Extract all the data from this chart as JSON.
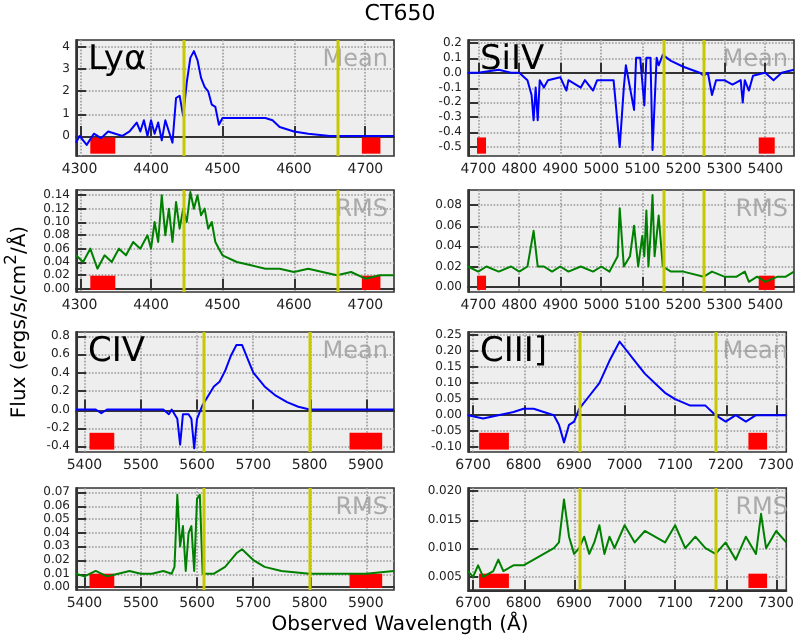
{
  "chart_data": [
    {
      "type": "line",
      "title": "CT650",
      "xlabel": "Observed Wavelength (Å)",
      "ylabel": "Flux (ergs/s/cm$^{2}$/Å)",
      "annotations": [
        "Lyα",
        "Mean"
      ],
      "color": "#0000ff",
      "grid": true,
      "marker": "none",
      "x": [
        4295,
        4300,
        4310,
        4320,
        4330,
        4340,
        4350,
        4360,
        4370,
        4380,
        4385,
        4390,
        4395,
        4400,
        4405,
        4410,
        4415,
        4420,
        4425,
        4430,
        4435,
        4440,
        4445,
        4450,
        4455,
        4460,
        4465,
        4470,
        4475,
        4480,
        4485,
        4490,
        4495,
        4500,
        4520,
        4540,
        4560,
        4570,
        4580,
        4590,
        4600,
        4620,
        4650,
        4700,
        4740
      ],
      "values": [
        -0.3,
        0.0,
        -0.4,
        0.1,
        -0.1,
        0.2,
        0.1,
        0.0,
        0.2,
        0.6,
        0.2,
        0.7,
        0.0,
        0.7,
        0.1,
        0.6,
        -0.2,
        0.7,
        0.2,
        -0.3,
        1.7,
        1.8,
        0.9,
        2.4,
        3.5,
        3.8,
        3.4,
        2.6,
        2.2,
        2.0,
        1.4,
        1.3,
        0.5,
        0.8,
        0.8,
        0.8,
        0.8,
        0.7,
        0.4,
        0.3,
        0.2,
        0.1,
        0.0,
        0.0,
        0.0
      ],
      "xlim": [
        4295,
        4740
      ],
      "xticks": [
        4300,
        4400,
        4500,
        4600,
        4700
      ],
      "ylim": [
        -0.9,
        4.3
      ],
      "yticks": [
        0,
        1,
        2,
        3,
        4
      ],
      "ref_lines": [
        {
          "axis": "x",
          "value": 4445,
          "color": "#c8c800"
        },
        {
          "axis": "x",
          "value": 4660,
          "color": "#c8c800"
        }
      ],
      "bands": [
        {
          "axis": "x",
          "from": 4315,
          "to": 4350,
          "color": "#ff0000"
        },
        {
          "axis": "x",
          "from": 4695,
          "to": 4721,
          "color": "#ff0000"
        }
      ]
    },
    {
      "type": "line",
      "annotations": [
        "RMS"
      ],
      "color": "#008000",
      "grid": true,
      "marker": "none",
      "x": [
        4295,
        4305,
        4315,
        4325,
        4335,
        4345,
        4355,
        4365,
        4375,
        4385,
        4395,
        4400,
        4405,
        4410,
        4415,
        4420,
        4425,
        4430,
        4435,
        4440,
        4445,
        4450,
        4455,
        4460,
        4465,
        4470,
        4475,
        4480,
        4485,
        4490,
        4495,
        4500,
        4520,
        4540,
        4560,
        4580,
        4600,
        4620,
        4640,
        4660,
        4680,
        4700,
        4720,
        4740
      ],
      "values": [
        0.05,
        0.04,
        0.06,
        0.03,
        0.05,
        0.04,
        0.06,
        0.05,
        0.07,
        0.06,
        0.08,
        0.06,
        0.1,
        0.07,
        0.14,
        0.08,
        0.12,
        0.07,
        0.13,
        0.09,
        0.12,
        0.1,
        0.145,
        0.12,
        0.14,
        0.11,
        0.12,
        0.09,
        0.1,
        0.07,
        0.06,
        0.05,
        0.04,
        0.035,
        0.03,
        0.03,
        0.025,
        0.03,
        0.025,
        0.02,
        0.025,
        0.015,
        0.02,
        0.02
      ],
      "xlim": [
        4295,
        4740
      ],
      "xticks": [
        4300,
        4400,
        4500,
        4600,
        4700
      ],
      "ylim": [
        -0.005,
        0.148
      ],
      "yticks": [
        {
          "value": 0,
          "label": "0.00"
        },
        0.02,
        0.04,
        0.06,
        0.08,
        {
          "value": 0.1,
          "label": "0.10"
        },
        0.12,
        0.14
      ],
      "ref_lines": [
        {
          "axis": "x",
          "value": 4445,
          "color": "#c8c800"
        },
        {
          "axis": "x",
          "value": 4660,
          "color": "#c8c800"
        }
      ],
      "bands": [
        {
          "axis": "x",
          "from": 4315,
          "to": 4350,
          "color": "#ff0000"
        },
        {
          "axis": "x",
          "from": 4695,
          "to": 4721,
          "color": "#ff0000"
        }
      ]
    },
    {
      "type": "line",
      "annotations": [
        "SiIV",
        "Mean"
      ],
      "color": "#0000ff",
      "grid": true,
      "marker": "none",
      "x": [
        4675,
        4700,
        4750,
        4780,
        4800,
        4820,
        4830,
        4835,
        4840,
        4845,
        4850,
        4860,
        4870,
        4900,
        4915,
        4920,
        4950,
        4960,
        4980,
        4990,
        5030,
        5045,
        5055,
        5060,
        5070,
        5080,
        5085,
        5095,
        5105,
        5110,
        5120,
        5125,
        5135,
        5140,
        5150,
        5170,
        5200,
        5240,
        5250,
        5260,
        5270,
        5280,
        5300,
        5320,
        5340,
        5345,
        5350,
        5360,
        5370,
        5400,
        5420,
        5440,
        5470
      ],
      "values": [
        0.0,
        0.0,
        0.02,
        0.0,
        0.0,
        -0.05,
        -0.15,
        -0.32,
        -0.1,
        -0.32,
        -0.05,
        -0.1,
        -0.05,
        -0.03,
        -0.12,
        -0.05,
        -0.1,
        -0.05,
        -0.12,
        -0.05,
        -0.05,
        -0.5,
        -0.1,
        0.05,
        -0.1,
        -0.25,
        0.1,
        0.1,
        -0.22,
        0.1,
        0.1,
        -0.52,
        0.1,
        0.05,
        0.12,
        0.08,
        0.04,
        0.0,
        -0.02,
        0.0,
        -0.15,
        -0.05,
        -0.05,
        -0.08,
        -0.05,
        -0.2,
        -0.05,
        -0.12,
        -0.02,
        0.0,
        -0.05,
        0.0,
        0.02
      ],
      "xlim": [
        4675,
        5470
      ],
      "xticks": [
        4700,
        4800,
        4900,
        5000,
        5100,
        5200,
        5300,
        5400
      ],
      "ylim": [
        -0.56,
        0.22
      ],
      "yticks": [
        -0.5,
        -0.4,
        -0.3,
        -0.2,
        -0.1,
        {
          "value": 0,
          "label": "0.0"
        },
        0.1,
        0.2
      ],
      "ref_lines": [
        {
          "axis": "x",
          "value": 5150,
          "color": "#c8c800"
        },
        {
          "axis": "x",
          "value": 5250,
          "color": "#c8c800"
        }
      ],
      "bands": [
        {
          "axis": "x",
          "from": 4697,
          "to": 4719,
          "color": "#ff0000"
        },
        {
          "axis": "x",
          "from": 5384,
          "to": 5423,
          "color": "#ff0000"
        }
      ]
    },
    {
      "type": "line",
      "annotations": [
        "RMS"
      ],
      "color": "#008000",
      "grid": true,
      "marker": "none",
      "x": [
        4675,
        4700,
        4720,
        4750,
        4780,
        4800,
        4820,
        4835,
        4845,
        4860,
        4880,
        4900,
        4920,
        4950,
        4980,
        5000,
        5020,
        5040,
        5045,
        5055,
        5070,
        5080,
        5090,
        5100,
        5105,
        5110,
        5115,
        5120,
        5125,
        5130,
        5140,
        5150,
        5170,
        5200,
        5250,
        5270,
        5300,
        5330,
        5350,
        5360,
        5380,
        5400,
        5430,
        5450,
        5470
      ],
      "values": [
        0.02,
        0.015,
        0.02,
        0.015,
        0.02,
        0.015,
        0.02,
        0.055,
        0.02,
        0.02,
        0.015,
        0.02,
        0.015,
        0.02,
        0.015,
        0.02,
        0.015,
        0.03,
        0.077,
        0.02,
        0.03,
        0.06,
        0.02,
        0.05,
        0.03,
        0.075,
        0.02,
        0.05,
        0.09,
        0.03,
        0.07,
        0.02,
        0.015,
        0.015,
        0.01,
        0.015,
        0.01,
        0.01,
        0.015,
        0.005,
        0.01,
        0.005,
        0.01,
        0.01,
        0.015
      ],
      "xlim": [
        4675,
        5470
      ],
      "xticks": [
        4700,
        4800,
        4900,
        5000,
        5100,
        5200,
        5300,
        5400
      ],
      "ylim": [
        -0.005,
        0.095
      ],
      "yticks": [
        {
          "value": 0,
          "label": "0.00"
        },
        0.02,
        0.04,
        0.06,
        0.08
      ],
      "ref_lines": [
        {
          "axis": "x",
          "value": 5150,
          "color": "#c8c800"
        },
        {
          "axis": "x",
          "value": 5250,
          "color": "#c8c800"
        }
      ],
      "bands": [
        {
          "axis": "x",
          "from": 4697,
          "to": 4719,
          "color": "#ff0000"
        },
        {
          "axis": "x",
          "from": 5384,
          "to": 5423,
          "color": "#ff0000"
        }
      ]
    },
    {
      "type": "line",
      "annotations": [
        "CIV",
        "Mean"
      ],
      "color": "#0000ff",
      "grid": true,
      "marker": "none",
      "x": [
        5385,
        5420,
        5430,
        5440,
        5500,
        5540,
        5550,
        5555,
        5565,
        5570,
        5575,
        5585,
        5590,
        5595,
        5600,
        5610,
        5620,
        5630,
        5640,
        5650,
        5660,
        5670,
        5680,
        5690,
        5700,
        5720,
        5740,
        5760,
        5780,
        5800,
        5850,
        5950
      ],
      "values": [
        0.0,
        0.0,
        -0.04,
        0.0,
        0.0,
        0.0,
        -0.05,
        0.0,
        -0.1,
        -0.38,
        -0.05,
        -0.05,
        -0.1,
        -0.42,
        -0.1,
        0.05,
        0.15,
        0.25,
        0.3,
        0.42,
        0.58,
        0.7,
        0.7,
        0.55,
        0.4,
        0.25,
        0.15,
        0.08,
        0.03,
        0.0,
        0.0,
        0.0
      ],
      "xlim": [
        5385,
        5950
      ],
      "xticks": [
        5400,
        5500,
        5600,
        5700,
        5800,
        5900
      ],
      "ylim": [
        -0.46,
        0.84
      ],
      "yticks": [
        -0.4,
        -0.2,
        {
          "value": 0,
          "label": "0.0"
        },
        0.2,
        0.4,
        0.6,
        0.8
      ],
      "ref_lines": [
        {
          "axis": "x",
          "value": 5610,
          "color": "#c8c800"
        },
        {
          "axis": "x",
          "value": 5800,
          "color": "#c8c800"
        }
      ],
      "bands": [
        {
          "axis": "x",
          "from": 5409,
          "to": 5453,
          "color": "#ff0000"
        },
        {
          "axis": "x",
          "from": 5871,
          "to": 5929,
          "color": "#ff0000"
        }
      ]
    },
    {
      "type": "line",
      "annotations": [
        "CIII]",
        "Mean"
      ],
      "color": "#0000ff",
      "grid": true,
      "marker": "none",
      "x": [
        6690,
        6720,
        6750,
        6780,
        6800,
        6820,
        6840,
        6860,
        6870,
        6880,
        6890,
        6900,
        6910,
        6930,
        6950,
        6970,
        6990,
        7000,
        7020,
        7040,
        7060,
        7080,
        7100,
        7130,
        7160,
        7180,
        7200,
        7220,
        7240,
        7260,
        7300,
        7320
      ],
      "values": [
        0.0,
        -0.01,
        0.0,
        0.01,
        0.02,
        0.02,
        0.01,
        0.0,
        -0.03,
        -0.085,
        -0.03,
        -0.02,
        0.02,
        0.06,
        0.1,
        0.17,
        0.23,
        0.21,
        0.17,
        0.13,
        0.1,
        0.07,
        0.05,
        0.03,
        0.03,
        0.0,
        -0.02,
        0.0,
        -0.02,
        0.0,
        0.0,
        0.0
      ],
      "xlim": [
        6690,
        7320
      ],
      "xticks": [
        6700,
        6800,
        6900,
        7000,
        7100,
        7200,
        7300
      ],
      "ylim": [
        -0.115,
        0.26
      ],
      "yticks": [
        {
          "value": -0.1,
          "label": "-0.10"
        },
        -0.05,
        {
          "value": 0,
          "label": "0.00"
        },
        0.05,
        {
          "value": 0.1,
          "label": "0.10"
        },
        0.15,
        {
          "value": 0.2,
          "label": "0.20"
        },
        0.25
      ],
      "ref_lines": [
        {
          "axis": "x",
          "value": 6910,
          "color": "#c8c800"
        },
        {
          "axis": "x",
          "value": 7180,
          "color": "#c8c800"
        }
      ],
      "bands": [
        {
          "axis": "x",
          "from": 6712,
          "to": 6771,
          "color": "#ff0000"
        },
        {
          "axis": "x",
          "from": 7245,
          "to": 7282,
          "color": "#ff0000"
        }
      ]
    },
    {
      "type": "line",
      "annotations": [
        "RMS"
      ],
      "color": "#008000",
      "grid": true,
      "marker": "none",
      "x": [
        5385,
        5400,
        5420,
        5440,
        5460,
        5480,
        5500,
        5520,
        5540,
        5555,
        5560,
        5565,
        5570,
        5575,
        5580,
        5585,
        5590,
        5595,
        5600,
        5605,
        5610,
        5630,
        5650,
        5670,
        5680,
        5700,
        5720,
        5750,
        5800,
        5850,
        5900,
        5950
      ],
      "values": [
        0.01,
        0.008,
        0.012,
        0.008,
        0.01,
        0.012,
        0.01,
        0.01,
        0.012,
        0.01,
        0.015,
        0.068,
        0.03,
        0.045,
        0.012,
        0.04,
        0.045,
        0.012,
        0.065,
        0.068,
        0.01,
        0.01,
        0.015,
        0.025,
        0.028,
        0.02,
        0.015,
        0.012,
        0.01,
        0.01,
        0.01,
        0.012
      ],
      "xlim": [
        5385,
        5950
      ],
      "xticks": [
        5400,
        5500,
        5600,
        5700,
        5800,
        5900
      ],
      "ylim": [
        -0.002,
        0.073
      ],
      "yticks": [
        {
          "value": 0,
          "label": "0.00"
        },
        0.01,
        0.02,
        0.03,
        0.04,
        0.05,
        0.06,
        0.07
      ],
      "ref_lines": [
        {
          "axis": "x",
          "value": 5610,
          "color": "#c8c800"
        },
        {
          "axis": "x",
          "value": 5800,
          "color": "#c8c800"
        }
      ],
      "bands": [
        {
          "axis": "x",
          "from": 5409,
          "to": 5453,
          "color": "#ff0000"
        },
        {
          "axis": "x",
          "from": 5871,
          "to": 5929,
          "color": "#ff0000"
        }
      ]
    },
    {
      "type": "line",
      "annotations": [
        "RMS"
      ],
      "color": "#008000",
      "grid": true,
      "marker": "none",
      "x": [
        6690,
        6700,
        6710,
        6720,
        6740,
        6750,
        6760,
        6780,
        6800,
        6820,
        6840,
        6860,
        6870,
        6880,
        6890,
        6900,
        6910,
        6920,
        6930,
        6940,
        6950,
        6960,
        6970,
        6980,
        7000,
        7020,
        7040,
        7060,
        7080,
        7100,
        7120,
        7140,
        7160,
        7180,
        7200,
        7220,
        7240,
        7260,
        7270,
        7280,
        7300,
        7320
      ],
      "values": [
        0.006,
        0.005,
        0.007,
        0.005,
        0.006,
        0.008,
        0.006,
        0.007,
        0.007,
        0.008,
        0.009,
        0.01,
        0.011,
        0.0185,
        0.012,
        0.009,
        0.01,
        0.012,
        0.009,
        0.011,
        0.014,
        0.009,
        0.012,
        0.01,
        0.014,
        0.011,
        0.013,
        0.012,
        0.011,
        0.014,
        0.01,
        0.012,
        0.01,
        0.009,
        0.011,
        0.008,
        0.012,
        0.009,
        0.016,
        0.01,
        0.013,
        0.011
      ],
      "xlim": [
        6690,
        7320
      ],
      "xticks": [
        6700,
        6800,
        6900,
        7000,
        7100,
        7200,
        7300
      ],
      "ylim": [
        0.0027,
        0.0205
      ],
      "yticks": [
        0.005,
        {
          "value": 0.01,
          "label": "0.010"
        },
        0.015,
        {
          "value": 0.02,
          "label": "0.020"
        }
      ],
      "ref_lines": [
        {
          "axis": "x",
          "value": 6910,
          "color": "#c8c800"
        },
        {
          "axis": "x",
          "value": 7180,
          "color": "#c8c800"
        }
      ],
      "bands": [
        {
          "axis": "x",
          "from": 6712,
          "to": 6771,
          "color": "#ff0000"
        },
        {
          "axis": "x",
          "from": 7245,
          "to": 7282,
          "color": "#ff0000"
        }
      ]
    }
  ]
}
